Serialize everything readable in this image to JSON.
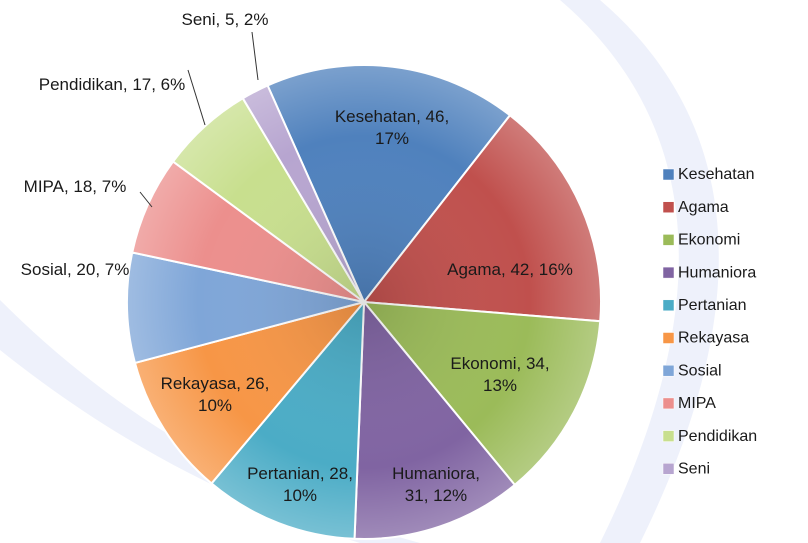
{
  "chart_data": {
    "type": "pie",
    "categories": [
      "Kesehatan",
      "Agama",
      "Ekonomi",
      "Humaniora",
      "Pertanian",
      "Rekayasa",
      "Sosial",
      "MIPA",
      "Pendidikan",
      "Seni"
    ],
    "values": [
      46,
      42,
      34,
      31,
      28,
      26,
      20,
      18,
      17,
      5
    ],
    "value_labels": [
      "Kesehatan, 46, 17%",
      "Agama, 42, 16%",
      "Ekonomi, 34, 13%",
      "Humaniora, 31, 12%",
      "Pertanian, 28, 10%",
      "Rekayasa, 26, 10%",
      "Sosial, 20, 7%",
      "MIPA, 18, 7%",
      "Pendidikan, 17, 6%",
      "Seni, 5, 2%"
    ],
    "colors": [
      "#4f81bd",
      "#c0504d",
      "#9bbb59",
      "#8064a2",
      "#4bacc6",
      "#f79646",
      "#7fa6d8",
      "#ec8f8d",
      "#c8df8e",
      "#b7a5d0"
    ],
    "legend": "right"
  }
}
